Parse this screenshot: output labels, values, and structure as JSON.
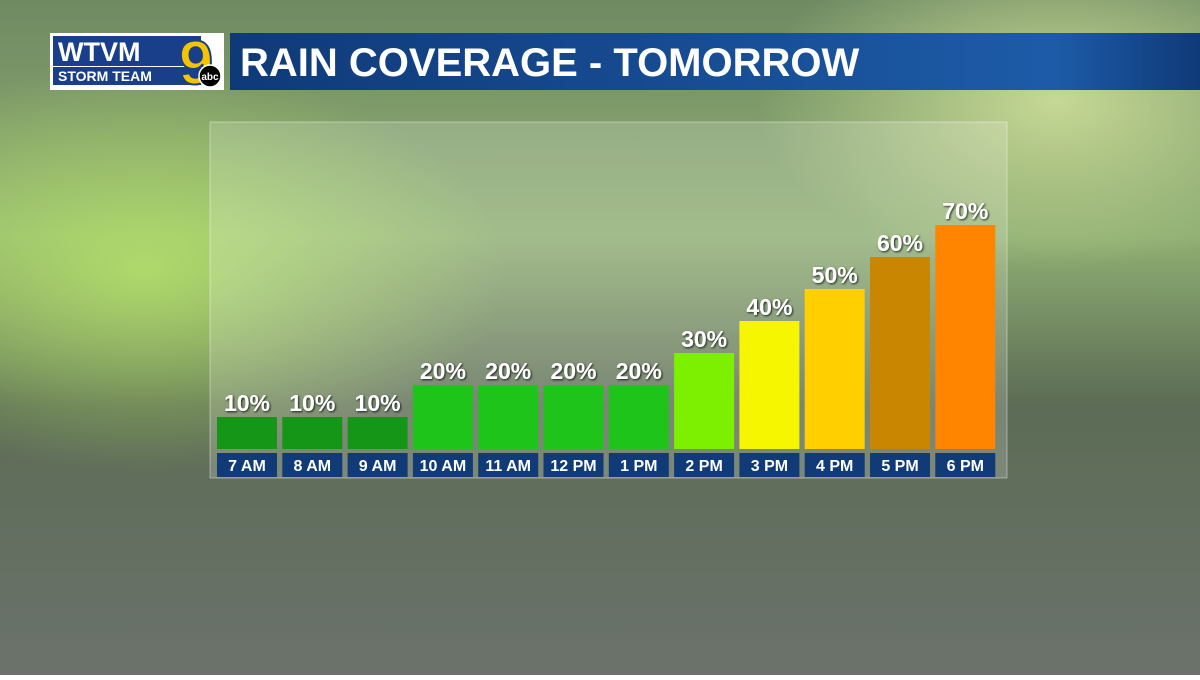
{
  "logo": {
    "call_letters": "WTVM",
    "tagline": "STORM TEAM",
    "channel": "9",
    "network": "abc"
  },
  "chart_data": {
    "type": "bar",
    "title": "RAIN COVERAGE - TOMORROW",
    "categories": [
      "7 AM",
      "8 AM",
      "9 AM",
      "10 AM",
      "11 AM",
      "12 PM",
      "1 PM",
      "2 PM",
      "3 PM",
      "4 PM",
      "5 PM",
      "6 PM"
    ],
    "values": [
      10,
      10,
      10,
      20,
      20,
      20,
      20,
      30,
      40,
      50,
      60,
      70
    ],
    "value_labels": [
      "10%",
      "10%",
      "10%",
      "20%",
      "20%",
      "20%",
      "20%",
      "30%",
      "40%",
      "50%",
      "60%",
      "70%"
    ],
    "colors": [
      "#169616",
      "#169616",
      "#169616",
      "#1fc41a",
      "#1fc41a",
      "#1fc41a",
      "#1fc41a",
      "#7cf000",
      "#f6f600",
      "#ffcf00",
      "#c98600",
      "#ff8400"
    ]
  }
}
